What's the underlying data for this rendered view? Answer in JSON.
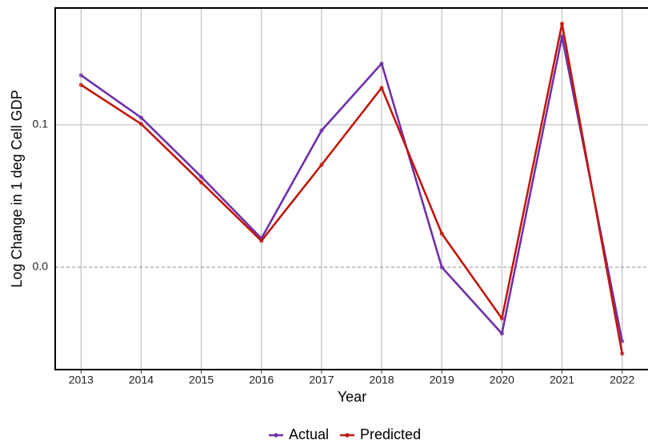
{
  "chart_data": {
    "type": "line",
    "x": [
      2013,
      2014,
      2015,
      2016,
      2017,
      2018,
      2019,
      2020,
      2021,
      2022
    ],
    "xlim": [
      2012.57,
      2022.43
    ],
    "xticks": [
      2013,
      2014,
      2015,
      2016,
      2017,
      2018,
      2019,
      2020,
      2021,
      2022
    ],
    "ylim": [
      -0.0719,
      0.182
    ],
    "yticks": [
      {
        "value": 0,
        "label": "0.0"
      },
      {
        "value": 0.1,
        "label": "0.1"
      }
    ],
    "xlabel": "Year",
    "ylabel": "Log Change in 1 deg Cell GDP",
    "grid": true,
    "legend": "bottom",
    "series": [
      {
        "name": "Actual",
        "color": "#7030a8",
        "values": [
          0.1348,
          0.105,
          0.0635,
          0.0202,
          0.096,
          0.143,
          0.0,
          -0.0466,
          0.162,
          -0.052
        ]
      },
      {
        "name": "Predicted",
        "color": "#c0180c",
        "values": [
          0.128,
          0.1006,
          0.0596,
          0.0185,
          0.0719,
          0.126,
          0.0236,
          -0.036,
          0.171,
          -0.0607
        ]
      }
    ]
  }
}
